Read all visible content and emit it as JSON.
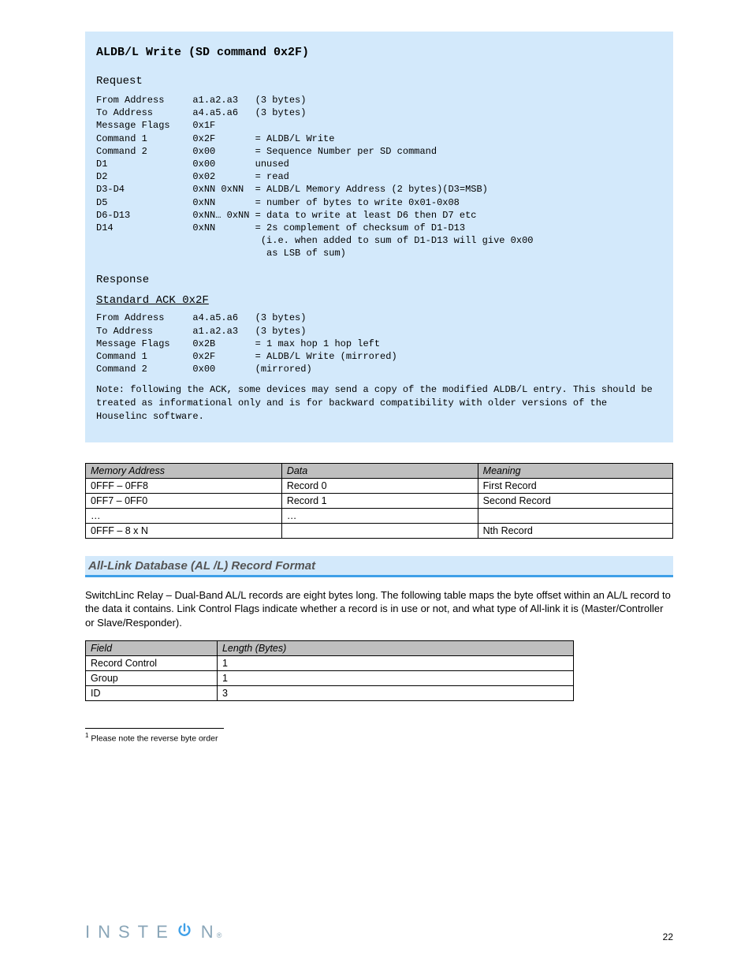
{
  "bluebox": {
    "title": "ALDB/L Write (SD command 0x2F)",
    "request_label": "Request",
    "request_block": "From Address     a1.a2.a3   (3 bytes)\nTo Address       a4.a5.a6   (3 bytes)\nMessage Flags    0x1F\nCommand 1        0x2F       = ALDB/L Write\nCommand 2        0x00       = Sequence Number per SD command\nD1               0x00       unused\nD2               0x02       = read\nD3-D4            0xNN 0xNN  = ALDB/L Memory Address (2 bytes)(D3=MSB)\nD5               0xNN       = number of bytes to write 0x01-0x08\nD6-D13           0xNN… 0xNN = data to write at least D6 then D7 etc\nD14              0xNN       = 2s complement of checksum of D1-D13\n                             (i.e. when added to sum of D1-D13 will give 0x00\n                              as LSB of sum)",
    "response_label": "Response",
    "ack_heading": "Standard ACK 0x2F",
    "ack_block": "From Address     a4.a5.a6   (3 bytes)\nTo Address       a1.a2.a3   (3 bytes)\nMessage Flags    0x2B       = 1 max hop 1 hop left\nCommand 1        0x2F       = ALDB/L Write (mirrored)\nCommand 2        0x00       (mirrored)",
    "note": "Note: following the ACK, some devices may send a copy of the modified ALDB/L entry. This should be treated as informational only and is for backward compatibility with older versions of the Houselinc software."
  },
  "table1": {
    "columns": [
      "Memory Address",
      "Data",
      "Meaning"
    ],
    "col_widths": [
      "33.4%",
      "33.4%",
      "33.2%"
    ],
    "rows": [
      [
        "0FFF – 0FF8",
        "Record 0",
        "First Record"
      ],
      [
        "0FF7 – 0FF0",
        "Record 1",
        "Second Record"
      ],
      [
        "…",
        "…",
        ""
      ],
      [
        "0FFF – 8 x N",
        "",
        "Nth Record"
      ]
    ]
  },
  "heading": "All-Link Database (AL /L) Record Format",
  "paragraph": "SwitchLinc Relay – Dual-Band AL/L records are eight bytes long. The following table maps the byte offset within an AL/L record to the data it contains. Link Control Flags indicate whether a record is in use or not, and what type of All-link it is (Master/Controller or Slave/Responder).",
  "table2": {
    "columns": [
      "Field",
      "Length (Bytes)"
    ],
    "col_widths": [
      "27%",
      "73%"
    ],
    "rows": [
      [
        "Record Control",
        "1"
      ],
      [
        "Group",
        "1"
      ],
      [
        "ID",
        "3"
      ]
    ]
  },
  "footnote": {
    "num": "1",
    "text": " Please note the reverse byte order"
  },
  "pagenum": "22",
  "logo": {
    "pre": "INSTE",
    "post": "N"
  }
}
